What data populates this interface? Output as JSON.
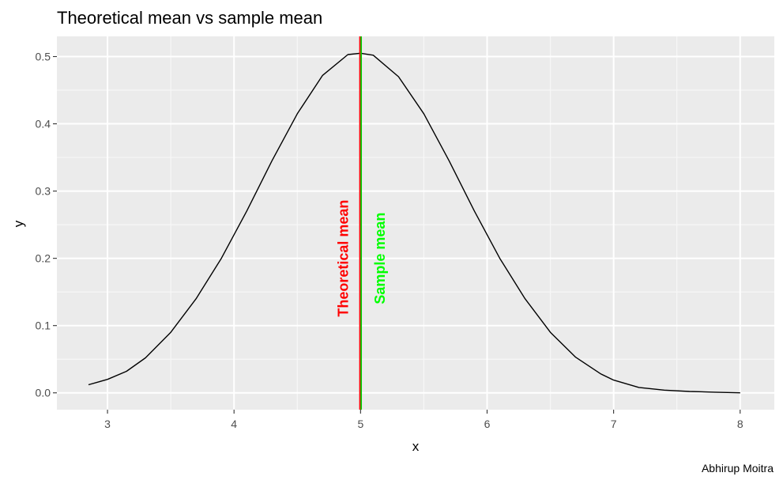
{
  "chart_data": {
    "type": "line",
    "title": "Theoretical mean vs sample mean",
    "xlabel": "x",
    "ylabel": "y",
    "caption": "Abhirup Moitra",
    "xlim": [
      2.6,
      8.27
    ],
    "ylim": [
      -0.025,
      0.53
    ],
    "x_ticks": [
      3,
      4,
      5,
      6,
      7,
      8
    ],
    "y_ticks": [
      0.0,
      0.1,
      0.2,
      0.3,
      0.4,
      0.5
    ],
    "x_tick_labels": [
      "3",
      "4",
      "5",
      "6",
      "7",
      "8"
    ],
    "y_tick_labels": [
      "0.0",
      "0.1",
      "0.2",
      "0.3",
      "0.4",
      "0.5"
    ],
    "grid": true,
    "series": [
      {
        "color": "#000000",
        "x": [
          2.85,
          3.0,
          3.15,
          3.3,
          3.5,
          3.7,
          3.9,
          4.1,
          4.3,
          4.5,
          4.7,
          4.9,
          5.0,
          5.1,
          5.3,
          5.5,
          5.7,
          5.9,
          6.1,
          6.3,
          6.5,
          6.7,
          6.9,
          7.0,
          7.2,
          7.4,
          7.6,
          7.8,
          8.0
        ],
        "y": [
          0.012,
          0.02,
          0.032,
          0.052,
          0.09,
          0.14,
          0.2,
          0.27,
          0.345,
          0.415,
          0.472,
          0.503,
          0.505,
          0.502,
          0.47,
          0.415,
          0.345,
          0.27,
          0.2,
          0.14,
          0.09,
          0.053,
          0.028,
          0.019,
          0.008,
          0.004,
          0.002,
          0.001,
          0.0
        ]
      }
    ],
    "vlines": [
      {
        "x": 4.995,
        "color": "#ff0000",
        "label": "Theoretical mean"
      },
      {
        "x": 5.005,
        "color": "#00cc00",
        "label": "Sample mean"
      }
    ],
    "annotations": [
      {
        "text": "Theoretical mean",
        "x": 4.87,
        "y": 0.2,
        "color": "#ff0000"
      },
      {
        "text": "Sample mean",
        "x": 5.16,
        "y": 0.2,
        "color": "#00ff00"
      }
    ]
  }
}
